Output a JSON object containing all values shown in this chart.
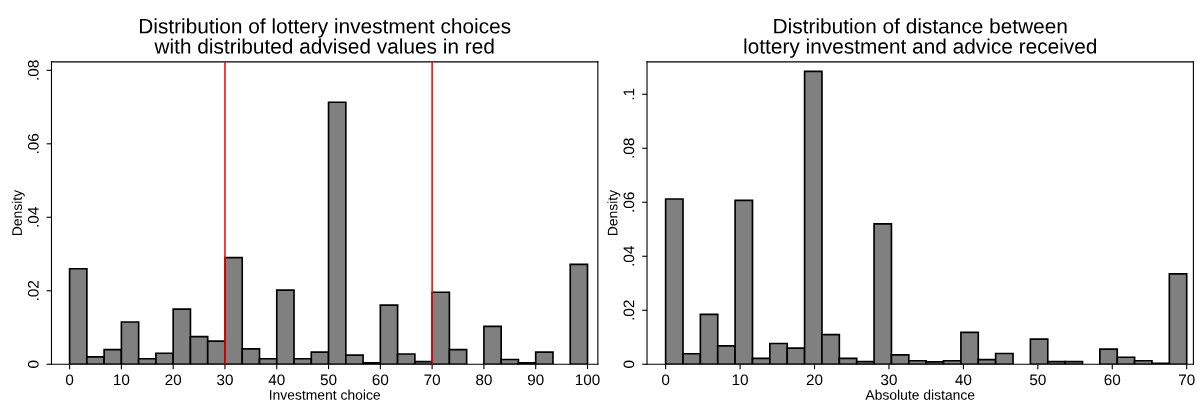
{
  "chart_data": [
    {
      "type": "histogram",
      "title": "Distribution of lottery investment choices\nwith distributed advised values in red",
      "xlabel": "Investment choice",
      "ylabel": "Density",
      "color": "#808080",
      "bins": [
        0,
        3.333,
        6.667,
        10,
        13.333,
        16.667,
        20,
        23.333,
        26.667,
        30,
        33.333,
        36.667,
        40,
        43.333,
        46.667,
        50,
        53.333,
        56.667,
        60,
        63.333,
        66.667,
        70,
        73.333,
        76.667,
        80,
        83.333,
        86.667,
        90,
        93.333,
        96.667,
        100
      ],
      "values": [
        0.026,
        0.002,
        0.004,
        0.0115,
        0.0015,
        0.003,
        0.015,
        0.0075,
        0.0063,
        0.029,
        0.0042,
        0.0015,
        0.0202,
        0.0015,
        0.0033,
        0.0713,
        0.0025,
        0.0004,
        0.0161,
        0.0028,
        0.0007,
        0.0196,
        0.004,
        0,
        0.0103,
        0.0013,
        0.0004,
        0.0033,
        0,
        0.0272
      ],
      "xlim": [
        -3.5,
        102
      ],
      "ylim": [
        0,
        0.0823
      ],
      "xticks": [
        0,
        10,
        20,
        30,
        40,
        50,
        60,
        70,
        80,
        90,
        100
      ],
      "yticks": [
        {
          "value": 0,
          "label": "0"
        },
        {
          "value": 0.02,
          "label": ".02"
        },
        {
          "value": 0.04,
          "label": ".04"
        },
        {
          "value": 0.06,
          "label": ".06"
        },
        {
          "value": 0.08,
          "label": ".08"
        }
      ],
      "ref_lines": [
        {
          "axis": "x",
          "value": 30,
          "color": "#ff0000"
        },
        {
          "axis": "x",
          "value": 70,
          "color": "#ff0000"
        }
      ],
      "grid": false,
      "legend": false
    },
    {
      "type": "histogram",
      "title": "Distribution of distance between\nlottery investment and advice received",
      "xlabel": "Absolute distance",
      "ylabel": "Density",
      "color": "#808080",
      "bins": [
        0,
        2.333,
        4.667,
        7,
        9.333,
        11.667,
        14,
        16.333,
        18.667,
        21,
        23.333,
        25.667,
        28,
        30.333,
        32.667,
        35,
        37.333,
        39.667,
        42,
        44.333,
        46.667,
        49,
        51.333,
        53.667,
        56,
        58.333,
        60.667,
        63,
        65.333,
        67.667,
        70
      ],
      "values": [
        0.0612,
        0.0039,
        0.0185,
        0.0068,
        0.0607,
        0.0022,
        0.0077,
        0.006,
        0.1085,
        0.011,
        0.0022,
        0.001,
        0.052,
        0.0035,
        0.0013,
        0.0009,
        0.0013,
        0.0118,
        0.0017,
        0.004,
        0,
        0.0093,
        0.001,
        0.001,
        0,
        0.0056,
        0.0026,
        0.0013,
        0.0003,
        0.0335
      ],
      "xlim": [
        -2.5,
        70.9
      ],
      "ylim": [
        0,
        0.112
      ],
      "xticks": [
        0,
        10,
        20,
        30,
        40,
        50,
        60,
        70
      ],
      "yticks": [
        {
          "value": 0,
          "label": "0"
        },
        {
          "value": 0.02,
          "label": ".02"
        },
        {
          "value": 0.04,
          "label": ".04"
        },
        {
          "value": 0.06,
          "label": ".06"
        },
        {
          "value": 0.08,
          "label": ".08"
        },
        {
          "value": 0.1,
          "label": ".1"
        }
      ],
      "grid": false,
      "legend": false
    }
  ]
}
